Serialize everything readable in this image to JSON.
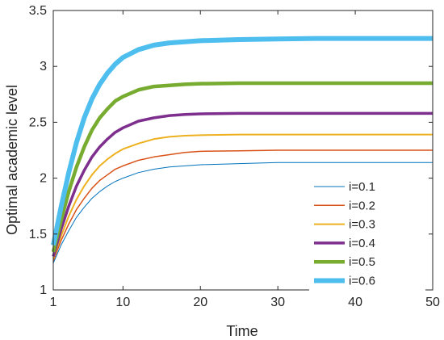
{
  "chart_data": {
    "type": "line",
    "title": "",
    "xlabel": "Time",
    "ylabel": "Optimal academic level",
    "xlim": [
      1,
      50
    ],
    "ylim": [
      1,
      3.5
    ],
    "xticks": [
      1,
      10,
      20,
      30,
      40,
      50
    ],
    "yticks": [
      1,
      1.5,
      2,
      2.5,
      3,
      3.5
    ],
    "xtick_labels": [
      "1",
      "10",
      "20",
      "30",
      "40",
      "50"
    ],
    "ytick_labels": [
      "1",
      "1.5",
      "2",
      "2.5",
      "3",
      "3.5"
    ],
    "grid": false,
    "legend_position": "lower-right",
    "x": [
      1,
      2,
      3,
      4,
      5,
      6,
      7,
      8,
      9,
      10,
      12,
      14,
      16,
      18,
      20,
      25,
      30,
      35,
      40,
      45,
      50
    ],
    "series": [
      {
        "name": "i=0.1",
        "color": "#0072BD",
        "values": [
          1.24,
          1.4,
          1.53,
          1.65,
          1.74,
          1.82,
          1.88,
          1.93,
          1.97,
          2.0,
          2.05,
          2.08,
          2.1,
          2.11,
          2.12,
          2.13,
          2.14,
          2.14,
          2.14,
          2.14,
          2.14
        ]
      },
      {
        "name": "i=0.2",
        "color": "#D95319",
        "values": [
          1.26,
          1.44,
          1.59,
          1.72,
          1.82,
          1.91,
          1.98,
          2.03,
          2.08,
          2.11,
          2.16,
          2.19,
          2.21,
          2.23,
          2.24,
          2.245,
          2.25,
          2.25,
          2.25,
          2.25,
          2.25
        ]
      },
      {
        "name": "i=0.3",
        "color": "#EDB120",
        "values": [
          1.28,
          1.48,
          1.66,
          1.81,
          1.93,
          2.03,
          2.11,
          2.17,
          2.22,
          2.26,
          2.31,
          2.35,
          2.37,
          2.38,
          2.385,
          2.39,
          2.39,
          2.39,
          2.39,
          2.39,
          2.39
        ]
      },
      {
        "name": "i=0.4",
        "color": "#7E2F8E",
        "values": [
          1.3,
          1.54,
          1.75,
          1.93,
          2.07,
          2.19,
          2.28,
          2.35,
          2.41,
          2.45,
          2.51,
          2.54,
          2.56,
          2.57,
          2.575,
          2.58,
          2.58,
          2.58,
          2.58,
          2.58,
          2.58
        ]
      },
      {
        "name": "i=0.5",
        "color": "#77AC30",
        "values": [
          1.34,
          1.62,
          1.88,
          2.1,
          2.28,
          2.43,
          2.54,
          2.62,
          2.69,
          2.73,
          2.79,
          2.82,
          2.83,
          2.84,
          2.845,
          2.85,
          2.85,
          2.85,
          2.85,
          2.85,
          2.85
        ]
      },
      {
        "name": "i=0.6",
        "color": "#4DBEEE",
        "values": [
          1.4,
          1.74,
          2.05,
          2.32,
          2.54,
          2.71,
          2.84,
          2.94,
          3.02,
          3.08,
          3.15,
          3.19,
          3.21,
          3.22,
          3.23,
          3.24,
          3.245,
          3.25,
          3.25,
          3.25,
          3.25
        ]
      }
    ]
  }
}
